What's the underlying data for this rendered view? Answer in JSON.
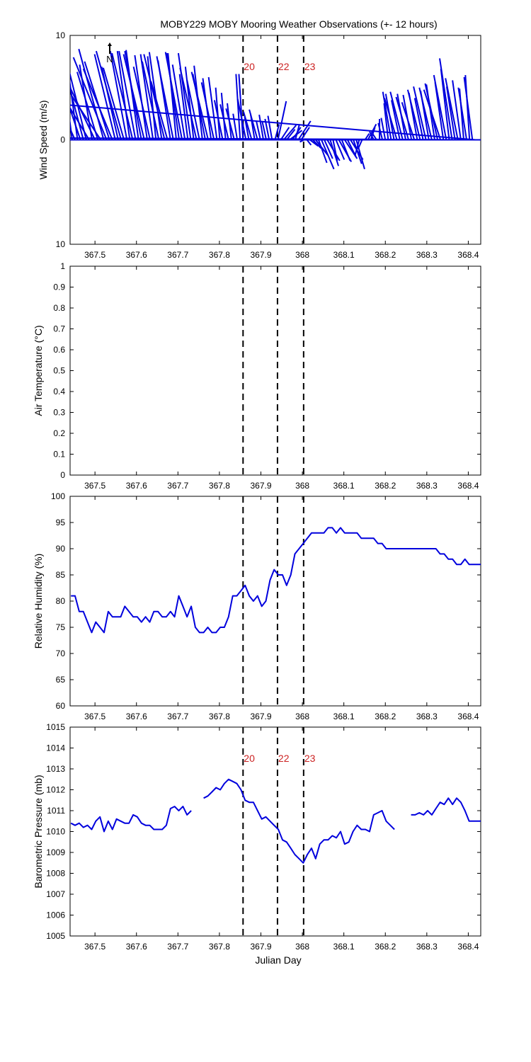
{
  "title": "MOBY229 MOBY Mooring Weather Observations (+- 12 hours)",
  "colors": {
    "series": "#0000dd",
    "marker_label": "#cc2222",
    "axis": "#000000"
  },
  "xlabel": "Julian Day",
  "xlim": [
    367.44,
    368.43
  ],
  "xticks": [
    "367.5",
    "367.6",
    "367.7",
    "367.8",
    "367.9",
    "368",
    "368.1",
    "368.2",
    "368.3",
    "368.4"
  ],
  "markers": [
    {
      "label": "20",
      "x": 367.857
    },
    {
      "label": "22",
      "x": 367.94
    },
    {
      "label": "23",
      "x": 368.003
    }
  ],
  "north_label": "N",
  "chart_data": [
    {
      "type": "line",
      "id": "wind",
      "title": "",
      "xlabel": "",
      "ylabel": "Wind Speed (m/s)",
      "ylim": [
        -10,
        10
      ],
      "yticks": [
        "10",
        "0",
        "10"
      ],
      "show_markers_labels": true,
      "series": [
        {
          "kind": "wind_vectors",
          "u_scale_note": "",
          "x": [
            367.445,
            367.452,
            367.458,
            367.465,
            367.472,
            367.479,
            367.486,
            367.493,
            367.5,
            367.507,
            367.514,
            367.521,
            367.528,
            367.535,
            367.542,
            367.549,
            367.556,
            367.563,
            367.57,
            367.577,
            367.584,
            367.591,
            367.598,
            367.605,
            367.612,
            367.619,
            367.626,
            367.633,
            367.64,
            367.647,
            367.654,
            367.661,
            367.668,
            367.675,
            367.682,
            367.689,
            367.696,
            367.703,
            367.71,
            367.717,
            367.724,
            367.731,
            367.738,
            367.745,
            367.752,
            367.759,
            367.766,
            367.773,
            367.78,
            367.787,
            367.794,
            367.801,
            367.808,
            367.815,
            367.822,
            367.829,
            367.836,
            367.843,
            367.85,
            367.857,
            367.864,
            367.871,
            367.878,
            367.885,
            367.892,
            367.899,
            367.906,
            367.913,
            367.92,
            367.927,
            367.934,
            367.941,
            367.948,
            367.955,
            367.962,
            367.969,
            367.976,
            367.983,
            367.99,
            367.997,
            368.004,
            368.011,
            368.018,
            368.025,
            368.032,
            368.039,
            368.046,
            368.053,
            368.06,
            368.067,
            368.074,
            368.081,
            368.088,
            368.095,
            368.102,
            368.109,
            368.116,
            368.123,
            368.13,
            368.137,
            368.144,
            368.151,
            368.158,
            368.165,
            368.172,
            368.179,
            368.186,
            368.193,
            368.2,
            368.207,
            368.214,
            368.221,
            368.228,
            368.235,
            368.242,
            368.249,
            368.256,
            368.263,
            368.27,
            368.277,
            368.284,
            368.291,
            368.298,
            368.305,
            368.312,
            368.319,
            368.326,
            368.333,
            368.34,
            368.347,
            368.354,
            368.361,
            368.368,
            368.375,
            368.382,
            368.389,
            368.396,
            368.403,
            368.41,
            368.417,
            368.424
          ],
          "u": [
            -0.02,
            -0.04,
            -0.03,
            -0.05,
            -0.03,
            -0.04,
            -0.05,
            -0.03,
            -0.06,
            -0.05,
            -0.07,
            -0.06,
            -0.08,
            -0.06,
            -0.07,
            -0.05,
            -0.04,
            -0.06,
            -0.05,
            -0.04,
            -0.03,
            -0.05,
            -0.04,
            -0.03,
            -0.04,
            -0.05,
            -0.03,
            -0.04,
            -0.03,
            -0.02,
            -0.04,
            -0.03,
            -0.05,
            -0.04,
            -0.03,
            -0.04,
            -0.02,
            -0.03,
            -0.04,
            -0.03,
            -0.02,
            -0.03,
            -0.02,
            -0.04,
            -0.03,
            -0.02,
            -0.03,
            -0.04,
            -0.02,
            -0.03,
            -0.02,
            -0.01,
            -0.02,
            -0.01,
            -0.02,
            -0.01,
            -0.02,
            -0.01,
            -0.01,
            -0.01,
            -0.02,
            -0.01,
            -0.02,
            -0.01,
            -0.02,
            -0.01,
            -0.01,
            -0.01,
            -0.01,
            -0.01,
            0.01,
            0.02,
            0.02,
            0.03,
            0.02,
            0.03,
            0.02,
            0.01,
            0.03,
            0.02,
            -0.01,
            0.01,
            0.02,
            0.02,
            0.03,
            0.02,
            0.03,
            0.02,
            0.03,
            0.02,
            0.01,
            0.02,
            0.03,
            0.02,
            0.03,
            0.02,
            0.03,
            0.02,
            0.02,
            -0.01,
            -0.01,
            0.01,
            0.02,
            0.01,
            -0.01,
            -0.01,
            0.0,
            -0.01,
            -0.01,
            -0.01,
            -0.02,
            -0.02,
            -0.03,
            -0.02,
            -0.03,
            -0.02,
            -0.03,
            -0.02,
            -0.03,
            -0.02,
            -0.03,
            -0.02,
            -0.03,
            -0.02,
            -0.03,
            -0.02,
            -0.03,
            -0.04,
            -0.02,
            -0.03,
            -0.02,
            -0.03,
            -0.02,
            -0.03,
            -0.02,
            -0.01,
            -0.02,
            -0.01,
            -0.02
          ],
          "v": [
            6.2,
            3.5,
            8.8,
            5.9,
            4.5,
            6.4,
            3.3,
            7.2,
            5.0,
            6.5,
            4.2,
            8.7,
            7.9,
            7.5,
            6.8,
            8.2,
            7.0,
            8.5,
            6.9,
            8.5,
            8.5,
            8.3,
            8.5,
            8.6,
            8.5,
            8.2,
            8.1,
            7.0,
            8.2,
            8.0,
            7.5,
            8.4,
            8.2,
            5.6,
            7.6,
            8.0,
            8.3,
            8.3,
            8.4,
            7.2,
            6.3,
            8.3,
            7.0,
            6.9,
            5.7,
            7.1,
            6.3,
            6.5,
            5.9,
            5.5,
            6.0,
            5.0,
            3.8,
            4.5,
            3.4,
            3.5,
            3.0,
            2.5,
            6.3,
            6.3,
            3.9,
            2.2,
            2.7,
            2.5,
            2.9,
            1.8,
            2.4,
            1.8,
            2.0,
            2.3,
            1.5,
            3.7,
            1.2,
            1.4,
            1.0,
            0.9,
            1.2,
            1.5,
            1.8,
            1.2,
            -0.2,
            -0.5,
            -0.6,
            -0.8,
            -1.5,
            -2.2,
            -2.8,
            -1.8,
            -2.0,
            -2.5,
            -2.0,
            -1.9,
            -2.1,
            -2.0,
            -1.8,
            -1.6,
            -1.9,
            -2.3,
            -2.8,
            -1.5,
            -0.9,
            0.6,
            1.5,
            1.2,
            0.8,
            0.6,
            2.0,
            1.6,
            2.1,
            3.5,
            4.6,
            4.4,
            4.0,
            3.8,
            4.6,
            4.4,
            4.1,
            4.3,
            3.6,
            4.5,
            4.8,
            4.0,
            5.1,
            4.7,
            5.0,
            5.3,
            5.4,
            4.8,
            5.5,
            6.2,
            6.8,
            7.8,
            5.1,
            5.9,
            5.7,
            4.9,
            5.0,
            6.2,
            6.0,
            3.9,
            0.2
          ]
        }
      ]
    },
    {
      "type": "line",
      "id": "airtemp",
      "title": "",
      "xlabel": "",
      "ylabel": "Air Temperature (°C)",
      "ylim": [
        0,
        1
      ],
      "yticks": [
        "0",
        "0.1",
        "0.2",
        "0.3",
        "0.4",
        "0.5",
        "0.6",
        "0.7",
        "0.8",
        "0.9",
        "1"
      ],
      "show_markers_labels": false,
      "series": []
    },
    {
      "type": "line",
      "id": "humidity",
      "title": "",
      "xlabel": "",
      "ylabel": "Relative Humidity (%)",
      "ylim": [
        60,
        100
      ],
      "yticks": [
        "60",
        "65",
        "70",
        "75",
        "80",
        "85",
        "90",
        "95",
        "100"
      ],
      "show_markers_labels": false,
      "series": [
        {
          "x": [
            367.442,
            367.452,
            367.462,
            367.472,
            367.482,
            367.492,
            367.502,
            367.512,
            367.522,
            367.532,
            367.542,
            367.552,
            367.562,
            367.572,
            367.582,
            367.592,
            367.602,
            367.612,
            367.622,
            367.632,
            367.642,
            367.652,
            367.662,
            367.672,
            367.682,
            367.692,
            367.702,
            367.712,
            367.722,
            367.732,
            367.742,
            367.752,
            367.762,
            367.772,
            367.782,
            367.792,
            367.802,
            367.812,
            367.822,
            367.832,
            367.842,
            367.852,
            367.862,
            367.872,
            367.882,
            367.892,
            367.902,
            367.912,
            367.922,
            367.932,
            367.942,
            367.952,
            367.962,
            367.972,
            367.982,
            367.992,
            368.002,
            368.012,
            368.022,
            368.032,
            368.042,
            368.052,
            368.062,
            368.072,
            368.082,
            368.092,
            368.102,
            368.112,
            368.122,
            368.132,
            368.142,
            368.152,
            368.162,
            368.172,
            368.182,
            368.192,
            368.202,
            368.212,
            368.222,
            368.232,
            368.242,
            368.252,
            368.262,
            368.272,
            368.282,
            368.292,
            368.302,
            368.312,
            368.322,
            368.332,
            368.342,
            368.352,
            368.362,
            368.372,
            368.382,
            368.392,
            368.402,
            368.412,
            368.422,
            368.43
          ],
          "y": [
            81,
            81,
            78,
            78,
            76,
            74,
            76,
            75,
            74,
            78,
            77,
            77,
            77,
            79,
            78,
            77,
            77,
            76,
            77,
            76,
            78,
            78,
            77,
            77,
            78,
            77,
            81,
            79,
            77,
            79,
            75,
            74,
            74,
            75,
            74,
            74,
            75,
            75,
            77,
            81,
            81,
            82,
            83,
            81,
            80,
            81,
            79,
            80,
            84,
            86,
            85,
            85,
            83,
            85,
            89,
            90,
            91,
            92,
            93,
            93,
            93,
            93,
            94,
            94,
            93,
            94,
            93,
            93,
            93,
            93,
            92,
            92,
            92,
            92,
            91,
            91,
            90,
            90,
            90,
            90,
            90,
            90,
            90,
            90,
            90,
            90,
            90,
            90,
            90,
            89,
            89,
            88,
            88,
            87,
            87,
            88,
            87,
            87,
            87,
            87
          ]
        }
      ]
    },
    {
      "type": "line",
      "id": "pressure",
      "title": "",
      "xlabel": "Julian Day",
      "ylabel": "Barometric Pressure (mb)",
      "ylim": [
        1005,
        1015
      ],
      "yticks": [
        "1005",
        "1006",
        "1007",
        "1008",
        "1009",
        "1010",
        "1011",
        "1012",
        "1013",
        "1014",
        "1015"
      ],
      "show_markers_labels": true,
      "series": [
        {
          "segments": [
            {
              "x": [
                367.442,
                367.452,
                367.462,
                367.472,
                367.482,
                367.492,
                367.502,
                367.512,
                367.522,
                367.532,
                367.542,
                367.552,
                367.562,
                367.572,
                367.582,
                367.592,
                367.602,
                367.612,
                367.622,
                367.632,
                367.642,
                367.652,
                367.662,
                367.672,
                367.682,
                367.692,
                367.702,
                367.712,
                367.722,
                367.732,
                367.742
              ],
              "y": [
                1010.4,
                1010.3,
                1010.4,
                1010.2,
                1010.3,
                1010.1,
                1010.5,
                1010.7,
                1010.0,
                1010.5,
                1010.1,
                1010.6,
                1010.5,
                1010.4,
                1010.4,
                1010.8,
                1010.7,
                1010.4,
                1010.3,
                1010.3,
                1010.1,
                1010.1,
                1010.1,
                1010.3,
                1011.1,
                1011.2,
                1011.0,
                1011.2,
                1010.8,
                1011.0,
                null
              ]
            },
            {
              "x": [
                367.762,
                367.772,
                367.782,
                367.792,
                367.802,
                367.812,
                367.822,
                367.832,
                367.842,
                367.852,
                367.862,
                367.872,
                367.882,
                367.892,
                367.902,
                367.912,
                367.922,
                367.932,
                367.942,
                367.952,
                367.962,
                367.972,
                367.982,
                367.992,
                368.002,
                368.012,
                368.022,
                368.032,
                368.042,
                368.052,
                368.062,
                368.072,
                368.082,
                368.092,
                368.102,
                368.112,
                368.122,
                368.132,
                368.142,
                368.152,
                368.162,
                368.172,
                368.182,
                368.192,
                368.202,
                368.212,
                368.222,
                368.232,
                368.242
              ],
              "y": [
                1011.6,
                1011.7,
                1011.9,
                1012.1,
                1012.0,
                1012.3,
                1012.5,
                1012.4,
                1012.3,
                1012.0,
                1011.5,
                1011.4,
                1011.4,
                1011.0,
                1010.6,
                1010.7,
                1010.5,
                1010.3,
                1010.1,
                1009.6,
                1009.5,
                1009.2,
                1008.9,
                1008.7,
                1008.5,
                1008.9,
                1009.2,
                1008.7,
                1009.4,
                1009.6,
                1009.6,
                1009.8,
                1009.7,
                1010.0,
                1009.4,
                1009.5,
                1010.0,
                1010.3,
                1010.1,
                1010.1,
                1010.0,
                1010.8,
                1010.9,
                1011.0,
                1010.5,
                1010.3,
                1010.1,
                null,
                null
              ]
            },
            {
              "x": [
                368.262,
                368.272,
                368.282,
                368.292,
                368.302,
                368.312,
                368.322,
                368.332,
                368.342,
                368.352,
                368.362,
                368.372,
                368.382,
                368.392,
                368.402,
                368.412,
                368.422,
                368.43
              ],
              "y": [
                1010.8,
                1010.8,
                1010.9,
                1010.8,
                1011.0,
                1010.8,
                1011.1,
                1011.4,
                1011.3,
                1011.6,
                1011.3,
                1011.6,
                1011.4,
                1011.0,
                1010.5,
                1010.5,
                1010.5,
                1010.5
              ]
            }
          ]
        }
      ]
    }
  ]
}
